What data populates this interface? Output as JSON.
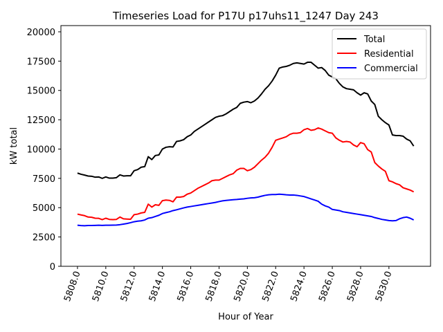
{
  "chart_data": {
    "type": "line",
    "title": "Timeseries Load for P17U p17uhs11_1247  Day 243",
    "xlabel": "Hour of Year",
    "ylabel": "kW total",
    "xlim": [
      5806.83,
      5832.94
    ],
    "ylim": [
      0,
      20530
    ],
    "grid": false,
    "legend_position": "top-right",
    "xticks": [
      5808,
      5810,
      5812,
      5814,
      5816,
      5818,
      5820,
      5822,
      5824,
      5826,
      5828,
      5830
    ],
    "xtick_labels": [
      "5808.0",
      "5810.0",
      "5812.0",
      "5814.0",
      "5816.0",
      "5818.0",
      "5820.0",
      "5822.0",
      "5824.0",
      "5826.0",
      "5828.0",
      "5830.0"
    ],
    "yticks": [
      0,
      2500,
      5000,
      7500,
      10000,
      12500,
      15000,
      17500,
      20000
    ],
    "ytick_labels": [
      "0",
      "2500",
      "5000",
      "7500",
      "10000",
      "12500",
      "15000",
      "17500",
      "20000"
    ],
    "x_start": 5808.0,
    "x_step": 0.25,
    "series": [
      {
        "name": "Total",
        "color": "#000000",
        "values": [
          7950,
          7850,
          7780,
          7700,
          7680,
          7600,
          7620,
          7500,
          7620,
          7520,
          7520,
          7560,
          7800,
          7700,
          7720,
          7720,
          8150,
          8250,
          8450,
          8500,
          9350,
          9100,
          9450,
          9500,
          10000,
          10150,
          10200,
          10180,
          10650,
          10700,
          10800,
          11050,
          11200,
          11500,
          11700,
          11900,
          12100,
          12300,
          12500,
          12700,
          12800,
          12850,
          13000,
          13200,
          13400,
          13550,
          13900,
          14000,
          14050,
          13950,
          14100,
          14350,
          14700,
          15100,
          15400,
          15800,
          16300,
          16900,
          17000,
          17050,
          17150,
          17300,
          17350,
          17300,
          17250,
          17400,
          17400,
          17150,
          16900,
          16950,
          16700,
          16300,
          16150,
          16000,
          15600,
          15300,
          15150,
          15100,
          15050,
          14800,
          14600,
          14800,
          14700,
          14100,
          13800,
          12800,
          12500,
          12250,
          12050,
          11200,
          11150,
          11150,
          11100,
          10850,
          10700,
          10250
        ]
      },
      {
        "name": "Residential",
        "color": "#ff0000",
        "values": [
          4450,
          4380,
          4320,
          4200,
          4180,
          4100,
          4090,
          3980,
          4100,
          4000,
          3980,
          4000,
          4200,
          4050,
          4030,
          4010,
          4400,
          4450,
          4550,
          4600,
          5300,
          5050,
          5250,
          5200,
          5600,
          5650,
          5620,
          5500,
          5900,
          5900,
          5950,
          6150,
          6250,
          6450,
          6650,
          6800,
          6950,
          7100,
          7300,
          7350,
          7350,
          7500,
          7650,
          7800,
          7900,
          8200,
          8350,
          8350,
          8150,
          8250,
          8450,
          8750,
          9050,
          9300,
          9650,
          10150,
          10750,
          10850,
          10950,
          11050,
          11250,
          11350,
          11350,
          11400,
          11650,
          11750,
          11600,
          11650,
          11800,
          11700,
          11550,
          11400,
          11350,
          10950,
          10750,
          10600,
          10650,
          10600,
          10350,
          10200,
          10550,
          10450,
          9950,
          9750,
          8850,
          8550,
          8300,
          8100,
          7300,
          7200,
          7050,
          6950,
          6700,
          6600,
          6500,
          6350
        ]
      },
      {
        "name": "Commercial",
        "color": "#0000ff",
        "values": [
          3500,
          3470,
          3460,
          3480,
          3480,
          3490,
          3500,
          3490,
          3500,
          3500,
          3510,
          3520,
          3550,
          3600,
          3650,
          3720,
          3800,
          3850,
          3880,
          3950,
          4100,
          4150,
          4250,
          4350,
          4500,
          4580,
          4650,
          4750,
          4820,
          4900,
          4980,
          5050,
          5100,
          5150,
          5200,
          5250,
          5300,
          5350,
          5400,
          5450,
          5520,
          5580,
          5620,
          5650,
          5680,
          5700,
          5730,
          5750,
          5800,
          5830,
          5850,
          5900,
          5980,
          6050,
          6100,
          6120,
          6120,
          6150,
          6130,
          6100,
          6080,
          6080,
          6050,
          6000,
          5950,
          5850,
          5750,
          5650,
          5550,
          5300,
          5150,
          5050,
          4850,
          4800,
          4750,
          4650,
          4600,
          4550,
          4500,
          4450,
          4400,
          4350,
          4300,
          4250,
          4150,
          4080,
          4000,
          3950,
          3900,
          3880,
          3900,
          4050,
          4150,
          4200,
          4100,
          3950
        ]
      }
    ]
  }
}
